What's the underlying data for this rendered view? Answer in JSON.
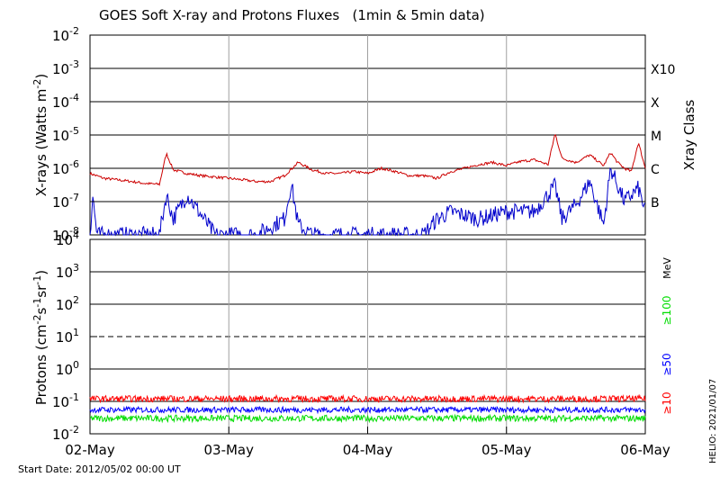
{
  "title": "GOES Soft X-ray and Protons Fluxes   (1min & 5min data)",
  "start_date": "Start Date: 2012/05/02 00:00 UT",
  "helio_tag": "HELIO: 2021/01/07",
  "colors": {
    "xray_long": "#cc0000",
    "xray_short": "#0000cc",
    "proton_10": "#ff0000",
    "proton_50": "#0000ff",
    "proton_100": "#00dd00",
    "grid": "#000000",
    "day_grid": "#a0a0a0"
  },
  "chart_data": [
    {
      "type": "line",
      "name": "xray",
      "ylabel": "X-rays (Watts m^-2)",
      "yscale": "log",
      "ylim": [
        1e-08,
        0.01
      ],
      "xlim": [
        "02-May",
        "06-May"
      ],
      "y_tick_labels": [
        {
          "base": "10",
          "exp": "-8"
        },
        {
          "base": "10",
          "exp": "-7"
        },
        {
          "base": "10",
          "exp": "-6"
        },
        {
          "base": "10",
          "exp": "-5"
        },
        {
          "base": "10",
          "exp": "-4"
        },
        {
          "base": "10",
          "exp": "-3"
        },
        {
          "base": "10",
          "exp": "-2"
        }
      ],
      "right_axis_label": "Xray Class",
      "class_labels": [
        "B",
        "C",
        "M",
        "X",
        "X10"
      ],
      "series": [
        {
          "name": "",
          "color": "#cc0000",
          "x_days": [
            0,
            0.1,
            0.2,
            0.3,
            0.4,
            0.5,
            0.55,
            0.6,
            0.7,
            0.8,
            0.9,
            1.0,
            1.1,
            1.2,
            1.3,
            1.4,
            1.5,
            1.6,
            1.7,
            1.8,
            1.9,
            2.0,
            2.1,
            2.2,
            2.3,
            2.4,
            2.5,
            2.6,
            2.7,
            2.8,
            2.9,
            3.0,
            3.1,
            3.2,
            3.3,
            3.35,
            3.4,
            3.5,
            3.6,
            3.7,
            3.75,
            3.8,
            3.85,
            3.9,
            3.95,
            4.0
          ],
          "values": [
            7e-07,
            5e-07,
            4.5e-07,
            4e-07,
            3.5e-07,
            3.3e-07,
            2.8e-06,
            9e-07,
            7e-07,
            6e-07,
            5.5e-07,
            5e-07,
            4.5e-07,
            4e-07,
            4e-07,
            6e-07,
            1.5e-06,
            9e-07,
            7e-07,
            7e-07,
            8e-07,
            7e-07,
            1e-06,
            8e-07,
            6e-07,
            6e-07,
            5e-07,
            8e-07,
            1e-06,
            1.3e-06,
            1.5e-06,
            1.2e-06,
            1.6e-06,
            1.8e-06,
            1.3e-06,
            1.1e-05,
            2e-06,
            1.5e-06,
            2.5e-06,
            1.2e-06,
            3e-06,
            1.5e-06,
            1e-06,
            8e-07,
            6e-06,
            1e-06
          ]
        },
        {
          "name": "",
          "color": "#0000cc",
          "x_days": [
            0,
            0.02,
            0.05,
            0.1,
            0.3,
            0.5,
            0.55,
            0.6,
            0.7,
            0.9,
            1.0,
            1.2,
            1.4,
            1.45,
            1.5,
            1.6,
            1.8,
            2.0,
            2.2,
            2.4,
            2.5,
            2.6,
            2.8,
            3.0,
            3.2,
            3.35,
            3.4,
            3.5,
            3.6,
            3.7,
            3.75,
            3.85,
            3.95,
            4.0
          ],
          "values": [
            1e-08,
            1.5e-07,
            1e-08,
            1e-08,
            1e-08,
            1e-08,
            1.6e-07,
            3e-08,
            1.6e-07,
            1e-08,
            1e-08,
            1e-08,
            3e-08,
            3.5e-07,
            2e-08,
            1e-08,
            1e-08,
            1e-08,
            1e-08,
            1e-08,
            3e-08,
            5e-08,
            3e-08,
            5e-08,
            5e-08,
            3e-07,
            3e-08,
            8e-08,
            4e-07,
            2e-08,
            1e-06,
            1e-07,
            2.5e-07,
            5e-08
          ]
        }
      ]
    },
    {
      "type": "line",
      "name": "protons",
      "ylabel": "Protons (cm^-2 s^-1 sr^-1)",
      "yscale": "log",
      "ylim": [
        0.01,
        10000
      ],
      "xlim": [
        "02-May",
        "06-May"
      ],
      "x_tick_labels": [
        "02-May",
        "03-May",
        "04-May",
        "05-May",
        "06-May"
      ],
      "y_tick_labels": [
        {
          "base": "10",
          "exp": "-2"
        },
        {
          "base": "10",
          "exp": "-1"
        },
        {
          "base": "10",
          "exp": "0"
        },
        {
          "base": "10",
          "exp": "1"
        },
        {
          "base": "10",
          "exp": "2"
        },
        {
          "base": "10",
          "exp": "3"
        },
        {
          "base": "10",
          "exp": "4"
        }
      ],
      "unit_label": "MeV",
      "threshold": 10,
      "series": [
        {
          "name": "≥10",
          "color": "#ff0000",
          "mean": 0.12,
          "spread": 0.1
        },
        {
          "name": "≥50",
          "color": "#0000ff",
          "mean": 0.055,
          "spread": 0.09
        },
        {
          "name": "≥100",
          "color": "#00dd00",
          "mean": 0.03,
          "spread": 0.1
        }
      ]
    }
  ]
}
